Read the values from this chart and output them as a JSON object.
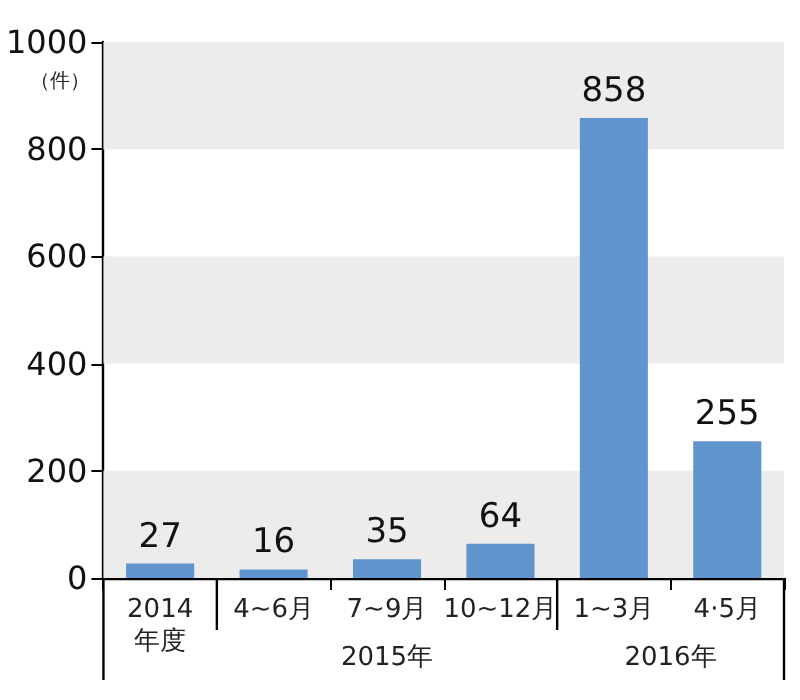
{
  "chart_data": {
    "type": "bar",
    "ylabel": "（件）",
    "categories": [
      "2014\n年度",
      "4~6月",
      "7~9月",
      "10~12月",
      "1~3月",
      "4·5月"
    ],
    "values": [
      27,
      16,
      35,
      64,
      858,
      255
    ],
    "color": "#6094cc",
    "ylim": [
      0,
      1000
    ],
    "yticks": [
      0,
      200,
      400,
      600,
      800,
      1000
    ],
    "data_labels": true,
    "bands": [
      {
        "axis": "y",
        "from": 0,
        "to": 200,
        "color": "#ececec"
      },
      {
        "axis": "y",
        "from": 400,
        "to": 600,
        "color": "#ececec"
      },
      {
        "axis": "y",
        "from": 800,
        "to": 1000,
        "color": "#ececec"
      }
    ],
    "annotations": [
      "2015年",
      "2016年"
    ]
  }
}
